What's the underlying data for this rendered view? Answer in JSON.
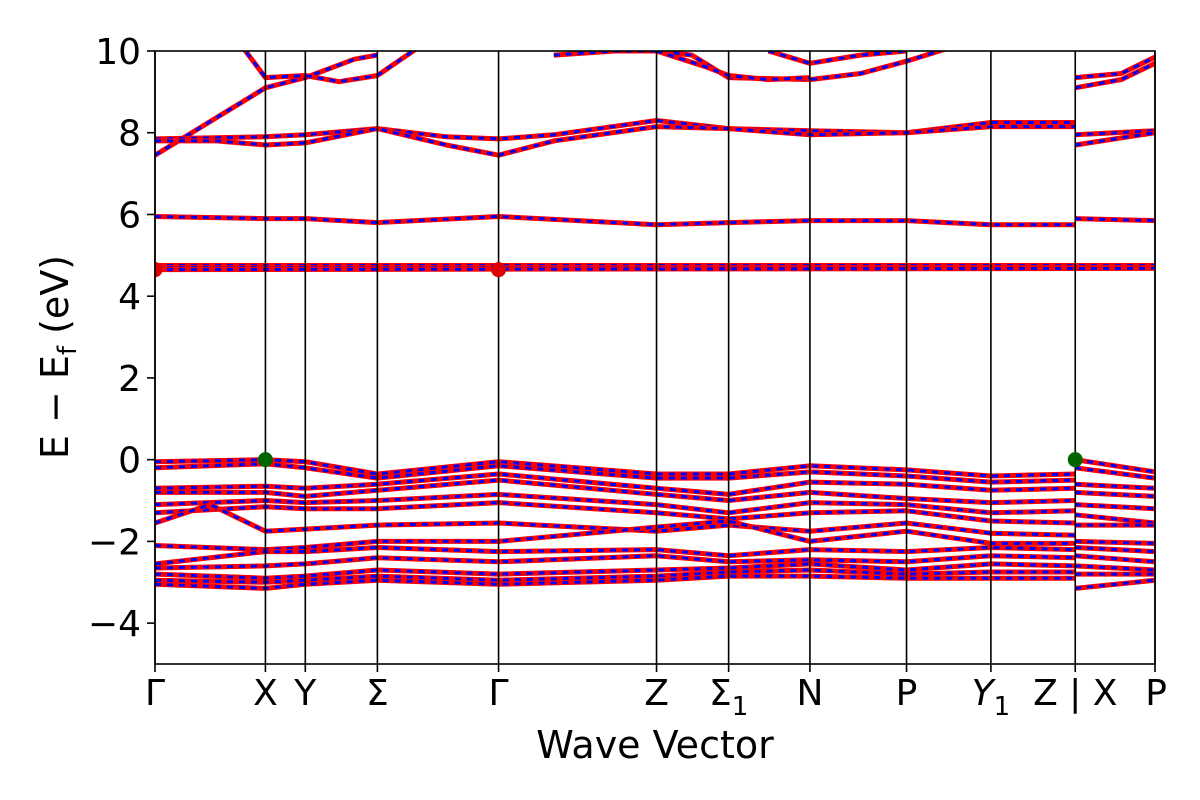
{
  "chart_data": {
    "type": "line",
    "title": "",
    "xlabel": "Wave Vector",
    "ylabel": "E − E",
    "ylabel_sub": "f",
    "ylabel_unit": " (eV)",
    "ylim": [
      -5,
      10
    ],
    "yticks": [
      -4,
      -2,
      0,
      2,
      4,
      6,
      8,
      10
    ],
    "ytick_labels": [
      "−4",
      "−2",
      "0",
      "2",
      "4",
      "6",
      "8",
      "10"
    ],
    "k_path": [
      {
        "label": "Γ",
        "k": 0.0
      },
      {
        "label": "X",
        "k": 0.72
      },
      {
        "label": "Y",
        "k": 0.98
      },
      {
        "label": "Σ",
        "k": 1.45
      },
      {
        "label": "Γ",
        "k": 2.24
      },
      {
        "label": "Z",
        "k": 3.27
      },
      {
        "label": "Σ",
        "sub": "1",
        "k": 3.74
      },
      {
        "label": "N",
        "k": 4.27
      },
      {
        "label": "P",
        "k": 4.9
      },
      {
        "label": "Y",
        "sub": "1",
        "k": 5.45,
        "italic": true
      },
      {
        "label": "Z | X",
        "k": 6.0
      },
      {
        "label": "P",
        "k": 6.52
      }
    ],
    "xlim": [
      0,
      6.52
    ],
    "series_colors": {
      "spin_up": "#ff0000",
      "spin_down": "#0000ff"
    },
    "extrema": [
      {
        "type": "vbm",
        "k": 0.72,
        "E": 0.0,
        "color": "#006400"
      },
      {
        "type": "vbm",
        "k": 6.0,
        "E": 0.0,
        "color": "#006400"
      },
      {
        "type": "cbm",
        "k": 0.0,
        "E": 4.65,
        "color": "#dd0000"
      },
      {
        "type": "cbm",
        "k": 2.24,
        "E": 4.65,
        "color": "#dd0000"
      }
    ],
    "bands": [
      {
        "name": "c5",
        "points": [
          [
            0,
            7.45
          ],
          [
            0.72,
            9.1
          ],
          [
            0.98,
            9.35
          ],
          [
            1.3,
            9.8
          ],
          [
            1.45,
            9.9
          ]
        ]
      },
      {
        "name": "c6",
        "points": [
          [
            0.55,
            10.2
          ],
          [
            0.72,
            9.35
          ],
          [
            0.98,
            9.4
          ],
          [
            1.2,
            9.25
          ],
          [
            1.45,
            9.4
          ],
          [
            1.8,
            10.3
          ]
        ]
      },
      {
        "name": "c3a",
        "points": [
          [
            0,
            7.85
          ],
          [
            0.72,
            7.9
          ],
          [
            0.98,
            7.95
          ],
          [
            1.45,
            8.1
          ],
          [
            1.9,
            7.9
          ],
          [
            2.24,
            7.85
          ],
          [
            2.6,
            7.95
          ],
          [
            3.27,
            8.3
          ],
          [
            3.74,
            8.1
          ],
          [
            4.27,
            8.05
          ],
          [
            4.9,
            8.0
          ],
          [
            5.45,
            8.25
          ],
          [
            6.0,
            8.25
          ]
        ]
      },
      {
        "name": "c3b",
        "points": [
          [
            0,
            7.8
          ],
          [
            0.4,
            7.8
          ],
          [
            0.72,
            7.7
          ],
          [
            0.98,
            7.75
          ],
          [
            1.45,
            8.1
          ],
          [
            1.9,
            7.7
          ],
          [
            2.24,
            7.45
          ],
          [
            2.6,
            7.8
          ],
          [
            3.27,
            8.15
          ],
          [
            3.74,
            8.1
          ],
          [
            4.27,
            7.95
          ],
          [
            4.9,
            8.0
          ],
          [
            5.45,
            8.15
          ],
          [
            6.0,
            8.15
          ]
        ]
      },
      {
        "name": "c3c",
        "points": [
          [
            6.0,
            7.95
          ],
          [
            6.52,
            8.05
          ]
        ]
      },
      {
        "name": "c3d",
        "points": [
          [
            6.0,
            7.7
          ],
          [
            6.52,
            8.0
          ]
        ]
      },
      {
        "name": "c4a",
        "points": [
          [
            2.6,
            9.9
          ],
          [
            3.0,
            10.0
          ],
          [
            3.27,
            10.0
          ],
          [
            3.5,
            9.9
          ],
          [
            3.74,
            9.35
          ],
          [
            4.27,
            9.3
          ],
          [
            4.6,
            9.45
          ],
          [
            4.9,
            9.75
          ],
          [
            5.2,
            10.1
          ]
        ]
      },
      {
        "name": "c4b",
        "points": [
          [
            3.27,
            10.0
          ],
          [
            3.6,
            9.6
          ],
          [
            3.74,
            9.4
          ],
          [
            4.0,
            9.3
          ],
          [
            4.27,
            9.35
          ]
        ]
      },
      {
        "name": "c4c",
        "points": [
          [
            4.0,
            10.0
          ],
          [
            4.27,
            9.7
          ],
          [
            4.6,
            9.9
          ],
          [
            4.9,
            10.0
          ]
        ]
      },
      {
        "name": "c4d",
        "points": [
          [
            6.0,
            9.35
          ],
          [
            6.3,
            9.45
          ],
          [
            6.52,
            9.85
          ]
        ]
      },
      {
        "name": "c4e",
        "points": [
          [
            6.0,
            9.1
          ],
          [
            6.3,
            9.3
          ],
          [
            6.52,
            9.7
          ]
        ]
      },
      {
        "name": "c2",
        "points": [
          [
            0,
            5.95
          ],
          [
            0.72,
            5.9
          ],
          [
            0.98,
            5.9
          ],
          [
            1.45,
            5.8
          ],
          [
            2.24,
            5.95
          ],
          [
            3.27,
            5.75
          ],
          [
            3.74,
            5.8
          ],
          [
            4.27,
            5.85
          ],
          [
            4.9,
            5.85
          ],
          [
            5.45,
            5.75
          ],
          [
            6.0,
            5.75
          ]
        ]
      },
      {
        "name": "c2b",
        "points": [
          [
            6.0,
            5.9
          ],
          [
            6.52,
            5.85
          ]
        ]
      },
      {
        "name": "c1a",
        "points": [
          [
            0,
            4.75
          ],
          [
            6.52,
            4.75
          ]
        ]
      },
      {
        "name": "c1b",
        "points": [
          [
            0,
            4.7
          ],
          [
            6.52,
            4.7
          ]
        ]
      },
      {
        "name": "c1c",
        "points": [
          [
            0,
            4.65
          ],
          [
            6.52,
            4.68
          ]
        ]
      },
      {
        "name": "v1",
        "points": [
          [
            0,
            -0.05
          ],
          [
            0.72,
            0.0
          ],
          [
            0.98,
            -0.05
          ],
          [
            1.45,
            -0.35
          ],
          [
            2.24,
            -0.05
          ],
          [
            3.27,
            -0.35
          ],
          [
            3.74,
            -0.35
          ],
          [
            4.27,
            -0.15
          ],
          [
            4.9,
            -0.25
          ],
          [
            5.45,
            -0.4
          ],
          [
            6.0,
            -0.35
          ]
        ]
      },
      {
        "name": "v1b",
        "points": [
          [
            6.0,
            0.0
          ],
          [
            6.52,
            -0.3
          ]
        ]
      },
      {
        "name": "v2",
        "points": [
          [
            0,
            -0.2
          ],
          [
            0.72,
            -0.1
          ],
          [
            0.98,
            -0.2
          ],
          [
            1.45,
            -0.45
          ],
          [
            2.24,
            -0.15
          ],
          [
            3.27,
            -0.45
          ],
          [
            3.74,
            -0.45
          ],
          [
            4.27,
            -0.3
          ],
          [
            4.9,
            -0.4
          ],
          [
            5.45,
            -0.55
          ],
          [
            6.0,
            -0.5
          ]
        ]
      },
      {
        "name": "v2b",
        "points": [
          [
            6.0,
            -0.2
          ],
          [
            6.52,
            -0.45
          ]
        ]
      },
      {
        "name": "v3",
        "points": [
          [
            0,
            -0.7
          ],
          [
            0.72,
            -0.65
          ],
          [
            0.98,
            -0.7
          ],
          [
            1.45,
            -0.6
          ],
          [
            2.24,
            -0.35
          ],
          [
            3.27,
            -0.7
          ],
          [
            3.74,
            -0.85
          ],
          [
            4.27,
            -0.55
          ],
          [
            4.9,
            -0.6
          ],
          [
            5.45,
            -0.75
          ],
          [
            6.0,
            -0.7
          ]
        ]
      },
      {
        "name": "v3b",
        "points": [
          [
            6.0,
            -0.6
          ],
          [
            6.52,
            -0.7
          ]
        ]
      },
      {
        "name": "v4",
        "points": [
          [
            0,
            -0.8
          ],
          [
            0.72,
            -0.8
          ],
          [
            0.98,
            -0.9
          ],
          [
            1.45,
            -0.75
          ],
          [
            2.24,
            -0.5
          ],
          [
            3.27,
            -0.85
          ],
          [
            3.74,
            -1.0
          ],
          [
            4.27,
            -0.8
          ],
          [
            4.9,
            -0.95
          ],
          [
            5.45,
            -1.05
          ],
          [
            6.0,
            -1.0
          ]
        ]
      },
      {
        "name": "v4b",
        "points": [
          [
            6.0,
            -0.8
          ],
          [
            6.52,
            -0.9
          ]
        ]
      },
      {
        "name": "v5",
        "points": [
          [
            0,
            -1.1
          ],
          [
            0.72,
            -1.0
          ],
          [
            0.98,
            -1.05
          ],
          [
            1.45,
            -1.0
          ],
          [
            2.24,
            -0.85
          ],
          [
            3.27,
            -1.1
          ],
          [
            3.74,
            -1.3
          ],
          [
            4.27,
            -1.05
          ],
          [
            4.9,
            -1.1
          ],
          [
            5.45,
            -1.3
          ],
          [
            6.0,
            -1.25
          ]
        ]
      },
      {
        "name": "v5b",
        "points": [
          [
            6.0,
            -1.1
          ],
          [
            6.52,
            -1.2
          ]
        ]
      },
      {
        "name": "v6",
        "points": [
          [
            0,
            -1.3
          ],
          [
            0.72,
            -1.15
          ],
          [
            0.98,
            -1.2
          ],
          [
            1.45,
            -1.2
          ],
          [
            2.24,
            -1.05
          ],
          [
            3.27,
            -1.3
          ],
          [
            3.74,
            -1.45
          ],
          [
            4.27,
            -1.3
          ],
          [
            4.9,
            -1.25
          ],
          [
            5.45,
            -1.5
          ],
          [
            6.0,
            -1.55
          ]
        ]
      },
      {
        "name": "v6b",
        "points": [
          [
            6.0,
            -1.35
          ],
          [
            6.52,
            -1.55
          ]
        ]
      },
      {
        "name": "v7",
        "points": [
          [
            0,
            -1.55
          ],
          [
            0.36,
            -1.1
          ],
          [
            0.72,
            -1.75
          ],
          [
            0.98,
            -1.7
          ],
          [
            1.45,
            -1.6
          ],
          [
            2.24,
            -1.55
          ],
          [
            3.27,
            -1.75
          ],
          [
            3.74,
            -1.6
          ],
          [
            4.27,
            -1.75
          ],
          [
            4.9,
            -1.55
          ],
          [
            5.45,
            -1.8
          ],
          [
            6.0,
            -1.85
          ]
        ]
      },
      {
        "name": "v7b",
        "points": [
          [
            6.0,
            -1.6
          ],
          [
            6.52,
            -1.6
          ]
        ]
      },
      {
        "name": "v8",
        "points": [
          [
            0,
            -2.1
          ],
          [
            0.72,
            -2.2
          ],
          [
            0.98,
            -2.15
          ],
          [
            1.45,
            -2.0
          ],
          [
            2.24,
            -2.0
          ],
          [
            3.27,
            -1.65
          ],
          [
            3.74,
            -1.5
          ],
          [
            4.27,
            -2.0
          ],
          [
            4.9,
            -1.75
          ],
          [
            5.45,
            -2.05
          ],
          [
            6.0,
            -2.05
          ]
        ]
      },
      {
        "name": "v8b",
        "points": [
          [
            6.0,
            -2.0
          ],
          [
            6.52,
            -2.05
          ]
        ]
      },
      {
        "name": "v9",
        "points": [
          [
            0,
            -2.55
          ],
          [
            0.72,
            -2.25
          ],
          [
            0.98,
            -2.25
          ],
          [
            1.45,
            -2.15
          ],
          [
            2.24,
            -2.25
          ],
          [
            3.27,
            -2.2
          ],
          [
            3.74,
            -2.35
          ],
          [
            4.27,
            -2.2
          ],
          [
            4.9,
            -2.25
          ],
          [
            5.45,
            -2.15
          ],
          [
            6.0,
            -2.2
          ]
        ]
      },
      {
        "name": "v9b",
        "points": [
          [
            6.0,
            -2.15
          ],
          [
            6.52,
            -2.25
          ]
        ]
      },
      {
        "name": "v10",
        "points": [
          [
            0,
            -2.65
          ],
          [
            0.72,
            -2.6
          ],
          [
            0.98,
            -2.55
          ],
          [
            1.45,
            -2.4
          ],
          [
            2.24,
            -2.5
          ],
          [
            3.27,
            -2.35
          ],
          [
            3.74,
            -2.5
          ],
          [
            4.27,
            -2.45
          ],
          [
            4.9,
            -2.5
          ],
          [
            5.45,
            -2.35
          ],
          [
            6.0,
            -2.4
          ]
        ]
      },
      {
        "name": "v10b",
        "points": [
          [
            6.0,
            -2.35
          ],
          [
            6.52,
            -2.5
          ]
        ]
      },
      {
        "name": "v11",
        "points": [
          [
            0,
            -2.8
          ],
          [
            0.72,
            -2.9
          ],
          [
            0.98,
            -2.85
          ],
          [
            1.45,
            -2.7
          ],
          [
            2.24,
            -2.8
          ],
          [
            3.27,
            -2.7
          ],
          [
            3.74,
            -2.65
          ],
          [
            4.27,
            -2.55
          ],
          [
            4.9,
            -2.7
          ],
          [
            5.45,
            -2.55
          ],
          [
            6.0,
            -2.6
          ]
        ]
      },
      {
        "name": "v11b",
        "points": [
          [
            6.0,
            -2.6
          ],
          [
            6.52,
            -2.7
          ]
        ]
      },
      {
        "name": "v12",
        "points": [
          [
            0,
            -2.95
          ],
          [
            0.72,
            -3.0
          ],
          [
            0.98,
            -2.95
          ],
          [
            1.45,
            -2.85
          ],
          [
            2.24,
            -2.95
          ],
          [
            3.27,
            -2.85
          ],
          [
            3.74,
            -2.75
          ],
          [
            4.27,
            -2.7
          ],
          [
            4.9,
            -2.8
          ],
          [
            5.45,
            -2.75
          ],
          [
            6.0,
            -2.75
          ]
        ]
      },
      {
        "name": "v12b",
        "points": [
          [
            6.0,
            -2.8
          ],
          [
            6.52,
            -2.8
          ]
        ]
      },
      {
        "name": "v13",
        "points": [
          [
            0,
            -3.05
          ],
          [
            0.72,
            -3.15
          ],
          [
            0.98,
            -3.05
          ],
          [
            1.45,
            -2.95
          ],
          [
            2.24,
            -3.05
          ],
          [
            3.27,
            -2.95
          ],
          [
            3.74,
            -2.85
          ],
          [
            4.27,
            -2.85
          ],
          [
            4.9,
            -2.9
          ],
          [
            5.45,
            -2.9
          ],
          [
            6.0,
            -2.9
          ]
        ]
      },
      {
        "name": "v13b",
        "points": [
          [
            6.0,
            -3.15
          ],
          [
            6.52,
            -2.95
          ]
        ]
      }
    ]
  }
}
